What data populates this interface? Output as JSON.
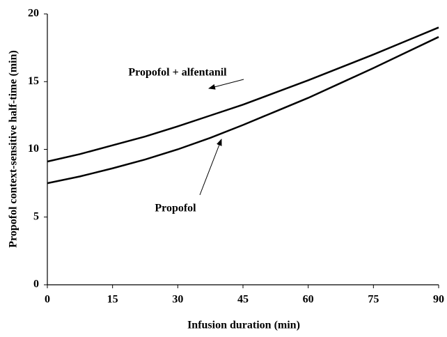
{
  "chart_data": {
    "type": "line",
    "x_label": "Infusion duration (min)",
    "y_label": "Propofol context-sensitive half-time (min)",
    "x": [
      0,
      7.5,
      15,
      22.5,
      30,
      37.5,
      45,
      52.5,
      60,
      67.5,
      75,
      82.5,
      90
    ],
    "series": [
      {
        "name": "Propofol + alfentanil",
        "color": "#000000",
        "values": [
          9.1,
          9.65,
          10.3,
          10.95,
          11.7,
          12.5,
          13.3,
          14.2,
          15.1,
          16.05,
          17.0,
          18.0,
          19.0
        ]
      },
      {
        "name": "Propofol",
        "color": "#000000",
        "values": [
          7.5,
          8.0,
          8.6,
          9.25,
          10.0,
          10.85,
          11.8,
          12.8,
          13.8,
          14.9,
          16.0,
          17.15,
          18.3
        ]
      }
    ],
    "xlim": [
      0,
      90
    ],
    "xticks": [
      0,
      15,
      30,
      45,
      60,
      75,
      90
    ],
    "ylim": [
      0,
      20
    ],
    "yticks": [
      0,
      5,
      10,
      15,
      20
    ]
  }
}
